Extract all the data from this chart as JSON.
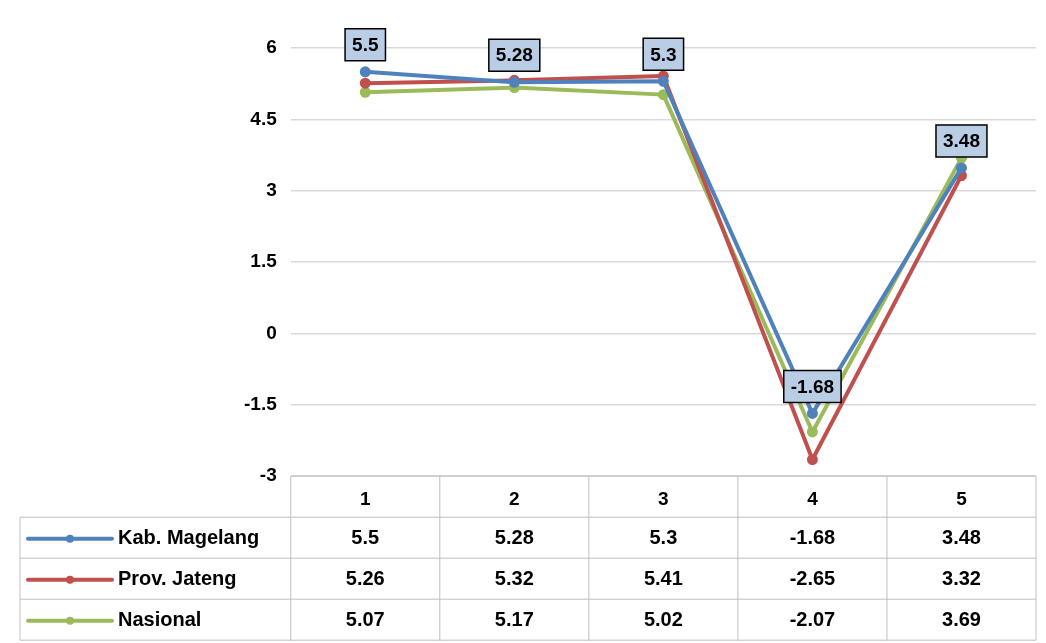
{
  "chart_data": {
    "type": "line",
    "categories": [
      "1",
      "2",
      "3",
      "4",
      "5"
    ],
    "series": [
      {
        "name": "Kab. Magelang",
        "color": "#4f81bd",
        "values": [
          5.5,
          5.28,
          5.3,
          -1.68,
          3.48
        ],
        "value_labels": [
          "5.5",
          "5.28",
          "5.3",
          "-1.68",
          "3.48"
        ]
      },
      {
        "name": "Prov. Jateng",
        "color": "#c0504d",
        "values": [
          5.26,
          5.32,
          5.41,
          -2.65,
          3.32
        ]
      },
      {
        "name": "Nasional",
        "color": "#9bbb59",
        "values": [
          5.07,
          5.17,
          5.02,
          -2.07,
          3.69
        ]
      }
    ],
    "ylim": [
      -3,
      6
    ],
    "yticks": [
      -3,
      -1.5,
      0,
      1.5,
      3,
      4.5,
      6
    ],
    "grid": "y",
    "legend": "bottom",
    "marker": "circle",
    "line_style": "solid",
    "data_labels": true
  }
}
